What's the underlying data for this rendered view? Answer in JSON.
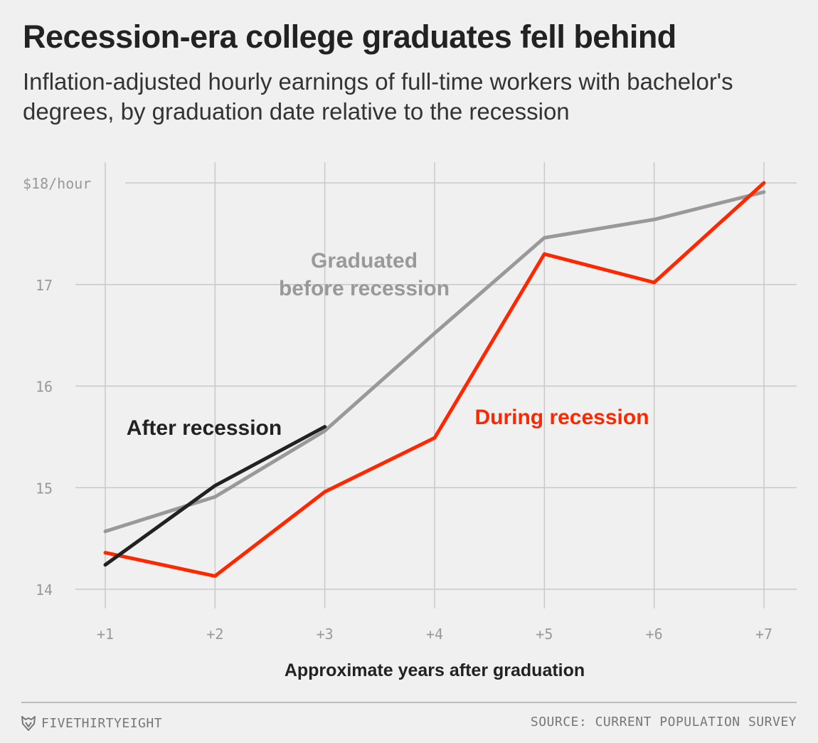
{
  "header": {
    "title": "Recession-era college graduates fell behind",
    "subtitle": "Inflation-adjusted hourly earnings of full-time workers with bachelor's degrees, by graduation date relative to the recession"
  },
  "footer": {
    "brand": "FIVETHIRTYEIGHT",
    "source": "SOURCE: CURRENT POPULATION SURVEY"
  },
  "colors": {
    "background": "#f0f0f0",
    "before": "#999999",
    "during": "#ff2700",
    "after": "#222222",
    "grid": "#c9c9c9"
  },
  "chart_data": {
    "type": "line",
    "xlabel": "Approximate years after graduation",
    "ylabel": "",
    "x": [
      1,
      2,
      3,
      4,
      5,
      6,
      7
    ],
    "x_tick_labels": [
      "+1",
      "+2",
      "+3",
      "+4",
      "+5",
      "+6",
      "+7"
    ],
    "y_ticks": [
      14,
      15,
      16,
      17,
      18
    ],
    "y_tick_labels": [
      "14",
      "15",
      "16",
      "17",
      "$18/hour"
    ],
    "ylim": [
      13.8,
      18.1
    ],
    "grid": true,
    "legend": "direct labels on lines",
    "series": [
      {
        "name": "Graduated before recession",
        "label_lines": [
          "Graduated",
          "before recession"
        ],
        "color": "#999999",
        "x": [
          1,
          2,
          3,
          4,
          5,
          6,
          7
        ],
        "values": [
          14.57,
          14.91,
          15.56,
          16.52,
          17.46,
          17.64,
          17.91
        ]
      },
      {
        "name": "During recession",
        "label_lines": [
          "During recession"
        ],
        "color": "#ff2700",
        "x": [
          1,
          2,
          3,
          4,
          5,
          6,
          7
        ],
        "values": [
          14.36,
          14.13,
          14.96,
          15.49,
          17.3,
          17.02,
          18.0
        ]
      },
      {
        "name": "After recession",
        "label_lines": [
          "After recession"
        ],
        "color": "#222222",
        "x": [
          1,
          2,
          3
        ],
        "values": [
          14.24,
          15.02,
          15.6
        ]
      }
    ]
  }
}
